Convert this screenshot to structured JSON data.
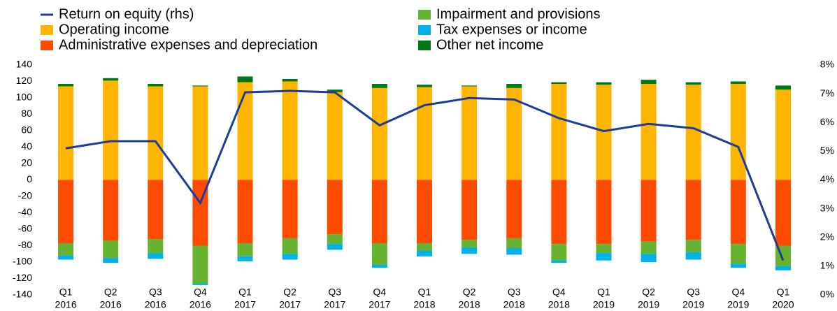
{
  "chart_data": {
    "type": "bar",
    "stacked": true,
    "categories": [
      [
        "Q1",
        "2016"
      ],
      [
        "Q2",
        "2016"
      ],
      [
        "Q3",
        "2016"
      ],
      [
        "Q4",
        "2016"
      ],
      [
        "Q1",
        "2017"
      ],
      [
        "Q2",
        "2017"
      ],
      [
        "Q3",
        "2017"
      ],
      [
        "Q4",
        "2017"
      ],
      [
        "Q1",
        "2018"
      ],
      [
        "Q2",
        "2018"
      ],
      [
        "Q3",
        "2018"
      ],
      [
        "Q4",
        "2018"
      ],
      [
        "Q1",
        "2019"
      ],
      [
        "Q2",
        "2019"
      ],
      [
        "Q3",
        "2019"
      ],
      [
        "Q4",
        "2019"
      ],
      [
        "Q1",
        "2020"
      ]
    ],
    "series": [
      {
        "name": "Return on equity (rhs)",
        "type": "line",
        "axis": "y2",
        "color": "#1f3c99",
        "values": [
          5.1,
          5.35,
          5.35,
          3.2,
          7.05,
          7.1,
          7.05,
          5.9,
          6.6,
          6.85,
          6.8,
          6.15,
          5.7,
          5.95,
          5.8,
          5.15,
          1.2
        ]
      },
      {
        "name": "Operating income",
        "color": "#ffb400",
        "values": [
          114,
          121,
          114,
          114,
          119,
          120,
          107,
          112,
          113,
          114,
          112,
          117,
          116,
          117,
          116,
          117,
          110
        ]
      },
      {
        "name": "Administrative expenses and depreciation",
        "color": "#ff4b00",
        "values": [
          -77,
          -74,
          -72,
          -80,
          -77,
          -71,
          -66,
          -77,
          -77,
          -73,
          -71,
          -78,
          -78,
          -75,
          -73,
          -78,
          -80
        ]
      },
      {
        "name": "Impairment and provisions",
        "color": "#65b32e",
        "values": [
          -15,
          -21,
          -17,
          -46,
          -16,
          -19,
          -12,
          -26,
          -9,
          -9,
          -12,
          -20,
          -11,
          -15,
          -15,
          -24,
          -25
        ]
      },
      {
        "name": "Tax expenses or income",
        "color": "#00b1ea",
        "values": [
          -5,
          -6,
          -7,
          -2,
          -6,
          -7,
          -7,
          -4,
          -7,
          -8,
          -8,
          -3,
          -9,
          -10,
          -9,
          -5,
          -5
        ]
      },
      {
        "name": "Other net income",
        "color": "#007816",
        "values": [
          3,
          3,
          3,
          1,
          7,
          3,
          3,
          5,
          3,
          1,
          5,
          2,
          3,
          5,
          3,
          3,
          5
        ]
      }
    ],
    "ylim": [
      -140,
      140
    ],
    "yticks": [
      -140,
      -120,
      -100,
      -80,
      -60,
      -40,
      -20,
      0,
      20,
      40,
      60,
      80,
      100,
      120,
      140
    ],
    "y2lim": [
      0,
      8
    ],
    "y2ticks": [
      {
        "value": 0,
        "label": "0%"
      },
      {
        "value": 1,
        "label": "1%"
      },
      {
        "value": 2,
        "label": "2%"
      },
      {
        "value": 3,
        "label": "3%"
      },
      {
        "value": 4,
        "label": "4%"
      },
      {
        "value": 5,
        "label": "5%"
      },
      {
        "value": 6,
        "label": "6%"
      },
      {
        "value": 7,
        "label": "7%"
      },
      {
        "value": 8,
        "label": "8%"
      }
    ]
  }
}
